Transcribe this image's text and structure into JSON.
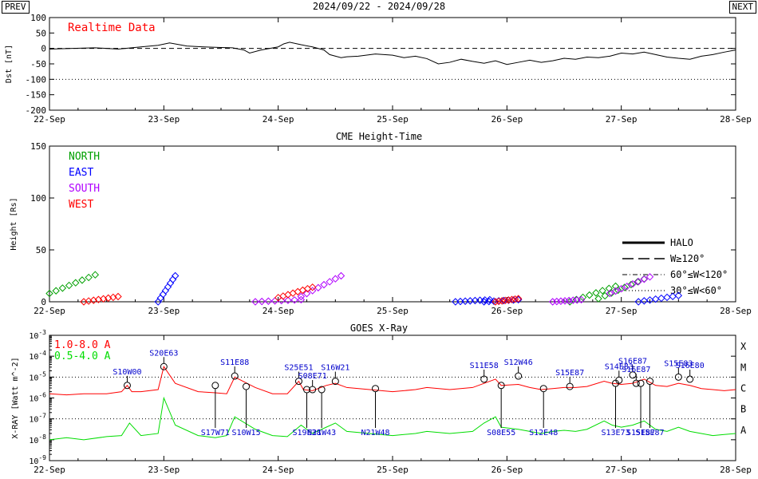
{
  "header": {
    "prev_label": "PREV",
    "next_label": "NEXT",
    "date_range": "2024/09/22 - 2024/09/28"
  },
  "colors": {
    "north": "#00a000",
    "east": "#0000ff",
    "south": "#b000ff",
    "west": "#ff0000",
    "xray_long": "#ff0000",
    "xray_short": "#00dd00",
    "flare_label": "#0000cc",
    "dst_line": "#000000"
  },
  "chart_data": [
    {
      "type": "line",
      "name": "dst",
      "title": "",
      "annotation": "Realtime Data",
      "ylabel": "Dst [nT]",
      "xlim": [
        0,
        6
      ],
      "ylim": [
        -200,
        100
      ],
      "yticks": [
        100,
        50,
        0,
        -50,
        -100,
        -150,
        -200
      ],
      "x_tick_labels": [
        "22-Sep",
        "23-Sep",
        "24-Sep",
        "25-Sep",
        "26-Sep",
        "27-Sep",
        "28-Sep"
      ],
      "reference_lines": [
        {
          "y": 0,
          "style": "dashed"
        },
        {
          "y": -100,
          "style": "dotted"
        }
      ],
      "series": [
        {
          "x": [
            0,
            0.2,
            0.4,
            0.6,
            0.8,
            0.95,
            1.05,
            1.2,
            1.35,
            1.5,
            1.6,
            1.7,
            1.75,
            1.85,
            2.0,
            2.05,
            2.1,
            2.2,
            2.3,
            2.4,
            2.45,
            2.55,
            2.6,
            2.7,
            2.85,
            3.0,
            3.1,
            3.2,
            3.3,
            3.4,
            3.5,
            3.6,
            3.7,
            3.8,
            3.9,
            4.0,
            4.1,
            4.2,
            4.3,
            4.4,
            4.5,
            4.6,
            4.7,
            4.8,
            4.9,
            5.0,
            5.1,
            5.2,
            5.3,
            5.4,
            5.5,
            5.6,
            5.7,
            5.8,
            5.9,
            6.0
          ],
          "y": [
            -2,
            0,
            2,
            -2,
            5,
            10,
            18,
            8,
            5,
            3,
            2,
            -5,
            -15,
            -5,
            5,
            15,
            20,
            12,
            5,
            -5,
            -20,
            -30,
            -27,
            -25,
            -18,
            -22,
            -30,
            -25,
            -33,
            -50,
            -45,
            -35,
            -42,
            -48,
            -40,
            -52,
            -45,
            -38,
            -45,
            -40,
            -32,
            -35,
            -28,
            -30,
            -25,
            -15,
            -18,
            -12,
            -20,
            -28,
            -32,
            -35,
            -25,
            -20,
            -12,
            -5
          ]
        }
      ]
    },
    {
      "type": "scatter",
      "name": "cme-height-time",
      "title": "CME Height-Time",
      "ylabel": "Height [Rs]",
      "xlim": [
        0,
        6
      ],
      "ylim": [
        0,
        150
      ],
      "yticks": [
        0,
        50,
        100,
        150
      ],
      "x_tick_labels": [
        "22-Sep",
        "23-Sep",
        "24-Sep",
        "25-Sep",
        "26-Sep",
        "27-Sep",
        "28-Sep"
      ],
      "legend_directions": [
        "NORTH",
        "EAST",
        "SOUTH",
        "WEST"
      ],
      "legend_width": [
        "HALO",
        "W≥120°",
        "60°≤W<120°",
        "30°≤W<60°"
      ],
      "series": [
        {
          "direction": "north",
          "x": [
            0.0,
            0.4
          ],
          "y": [
            8,
            26
          ]
        },
        {
          "direction": "north",
          "x": [
            4.55,
            4.95
          ],
          "y": [
            0,
            15
          ]
        },
        {
          "direction": "north",
          "x": [
            4.8,
            5.2
          ],
          "y": [
            3,
            22
          ]
        },
        {
          "direction": "east",
          "x": [
            0.95,
            1.1
          ],
          "y": [
            0,
            25
          ]
        },
        {
          "direction": "east",
          "x": [
            3.55,
            3.85
          ],
          "y": [
            0,
            2
          ]
        },
        {
          "direction": "east",
          "x": [
            3.8,
            4.1
          ],
          "y": [
            0,
            2
          ]
        },
        {
          "direction": "east",
          "x": [
            5.15,
            5.5
          ],
          "y": [
            0,
            6
          ]
        },
        {
          "direction": "south",
          "x": [
            1.8,
            2.2
          ],
          "y": [
            0,
            2
          ]
        },
        {
          "direction": "south",
          "x": [
            2.2,
            2.55
          ],
          "y": [
            5,
            25
          ]
        },
        {
          "direction": "south",
          "x": [
            4.4,
            4.65
          ],
          "y": [
            0,
            2
          ]
        },
        {
          "direction": "south",
          "x": [
            4.9,
            5.25
          ],
          "y": [
            8,
            24
          ]
        },
        {
          "direction": "west",
          "x": [
            0.3,
            0.6
          ],
          "y": [
            0,
            5
          ]
        },
        {
          "direction": "west",
          "x": [
            2.0,
            2.3
          ],
          "y": [
            4,
            14
          ]
        },
        {
          "direction": "west",
          "x": [
            3.9,
            4.1
          ],
          "y": [
            0,
            3
          ]
        }
      ]
    },
    {
      "type": "line",
      "name": "goes-xray",
      "title": "GOES X-Ray",
      "ylabel": "X-RAY [Watt m^-2]",
      "y_scale": "log",
      "ylim": [
        "1e-9",
        "1e-3"
      ],
      "ytick_labels": [
        "10^-9",
        "10^-8",
        "10^-7",
        "10^-6",
        "10^-5",
        "10^-4",
        "10^-3"
      ],
      "class_labels": [
        "A",
        "B",
        "C",
        "M",
        "X"
      ],
      "xlim": [
        0,
        6
      ],
      "x_tick_labels": [
        "22-Sep",
        "23-Sep",
        "24-Sep",
        "25-Sep",
        "26-Sep",
        "27-Sep",
        "28-Sep"
      ],
      "series": [
        {
          "name": "1.0-8.0 A",
          "color": "xray_long",
          "x": [
            0,
            0.15,
            0.3,
            0.5,
            0.63,
            0.68,
            0.72,
            0.8,
            0.95,
            1.0,
            1.1,
            1.3,
            1.45,
            1.55,
            1.62,
            1.8,
            1.95,
            2.08,
            2.18,
            2.22,
            2.3,
            2.42,
            2.5,
            2.6,
            2.8,
            3.0,
            3.2,
            3.3,
            3.5,
            3.7,
            3.8,
            3.9,
            3.95,
            4.1,
            4.2,
            4.3,
            4.4,
            4.5,
            4.6,
            4.7,
            4.85,
            4.92,
            5.0,
            5.1,
            5.2,
            5.3,
            5.4,
            5.5,
            5.6,
            5.7,
            5.8,
            5.9,
            6.0
          ],
          "y": [
            -5.8,
            -5.85,
            -5.8,
            -5.8,
            -5.7,
            -5.4,
            -5.7,
            -5.7,
            -5.6,
            -4.5,
            -5.3,
            -5.7,
            -5.75,
            -5.8,
            -5.0,
            -5.5,
            -5.8,
            -5.8,
            -5.2,
            -5.6,
            -5.65,
            -5.4,
            -5.3,
            -5.5,
            -5.6,
            -5.7,
            -5.6,
            -5.5,
            -5.6,
            -5.5,
            -5.3,
            -5.1,
            -5.4,
            -5.35,
            -5.5,
            -5.6,
            -5.55,
            -5.5,
            -5.5,
            -5.45,
            -5.2,
            -5.3,
            -5.35,
            -5.3,
            -5.1,
            -5.4,
            -5.45,
            -5.3,
            -5.4,
            -5.55,
            -5.6,
            -5.65,
            -5.6
          ]
        },
        {
          "name": "0.5-4.0 A",
          "color": "xray_short",
          "x": [
            0,
            0.15,
            0.3,
            0.5,
            0.63,
            0.7,
            0.8,
            0.95,
            1.0,
            1.1,
            1.3,
            1.45,
            1.55,
            1.62,
            1.8,
            1.95,
            2.08,
            2.2,
            2.3,
            2.42,
            2.5,
            2.6,
            2.8,
            3.0,
            3.2,
            3.3,
            3.5,
            3.7,
            3.8,
            3.9,
            3.95,
            4.1,
            4.2,
            4.3,
            4.4,
            4.5,
            4.6,
            4.7,
            4.85,
            4.92,
            5.0,
            5.1,
            5.2,
            5.3,
            5.4,
            5.5,
            5.6,
            5.7,
            5.8,
            5.9,
            6.0
          ],
          "y": [
            -8.0,
            -7.9,
            -8.0,
            -7.85,
            -7.8,
            -7.2,
            -7.8,
            -7.7,
            -6.0,
            -7.3,
            -7.8,
            -7.9,
            -7.8,
            -6.9,
            -7.5,
            -7.8,
            -7.85,
            -7.3,
            -7.7,
            -7.4,
            -7.2,
            -7.6,
            -7.7,
            -7.8,
            -7.7,
            -7.6,
            -7.7,
            -7.6,
            -7.2,
            -6.9,
            -7.4,
            -7.5,
            -7.6,
            -7.7,
            -7.6,
            -7.55,
            -7.6,
            -7.5,
            -7.1,
            -7.3,
            -7.4,
            -7.3,
            -7.1,
            -7.5,
            -7.6,
            -7.4,
            -7.6,
            -7.7,
            -7.8,
            -7.75,
            -7.7
          ]
        }
      ],
      "flares": [
        {
          "label": "S10W00",
          "x": 0.68,
          "y": -5.4,
          "position": "above"
        },
        {
          "label": "S20E63",
          "x": 1.0,
          "y": -4.5,
          "position": "above"
        },
        {
          "label": "S17W71",
          "x": 1.45,
          "y": -5.4,
          "position": "below"
        },
        {
          "label": "S11E88",
          "x": 1.62,
          "y": -4.95,
          "position": "above"
        },
        {
          "label": "S10W15",
          "x": 1.72,
          "y": -5.45,
          "position": "below"
        },
        {
          "label": "S25E51",
          "x": 2.18,
          "y": -5.2,
          "position": "above"
        },
        {
          "label": "S19E38",
          "x": 2.25,
          "y": -5.6,
          "position": "below"
        },
        {
          "label": "S08E71",
          "x": 2.3,
          "y": -5.6,
          "position": "above"
        },
        {
          "label": "N21W43",
          "x": 2.38,
          "y": -5.6,
          "position": "below"
        },
        {
          "label": "S16W21",
          "x": 2.5,
          "y": -5.2,
          "position": "above"
        },
        {
          "label": "N21W48",
          "x": 2.85,
          "y": -5.55,
          "position": "below"
        },
        {
          "label": "S11E58",
          "x": 3.8,
          "y": -5.1,
          "position": "above"
        },
        {
          "label": "S08E55",
          "x": 3.95,
          "y": -5.4,
          "position": "below"
        },
        {
          "label": "S12W46",
          "x": 4.1,
          "y": -4.95,
          "position": "above"
        },
        {
          "label": "S12E48",
          "x": 4.32,
          "y": -5.55,
          "position": "below"
        },
        {
          "label": "S15E87",
          "x": 4.55,
          "y": -5.45,
          "position": "above"
        },
        {
          "label": "S13E73",
          "x": 4.95,
          "y": -5.3,
          "position": "below"
        },
        {
          "label": "S14E83",
          "x": 4.98,
          "y": -5.15,
          "position": "above"
        },
        {
          "label": "S16E87",
          "x": 5.1,
          "y": -4.9,
          "position": "above"
        },
        {
          "label": "S16E87",
          "x": 5.13,
          "y": -5.3,
          "position": "above"
        },
        {
          "label": "S15E87",
          "x": 5.17,
          "y": -5.3,
          "position": "below"
        },
        {
          "label": "S15E87",
          "x": 5.25,
          "y": -5.2,
          "position": "below"
        },
        {
          "label": "S15E83",
          "x": 5.5,
          "y": -5.0,
          "position": "above"
        },
        {
          "label": "S16E80",
          "x": 5.6,
          "y": -5.1,
          "position": "above"
        }
      ]
    }
  ]
}
